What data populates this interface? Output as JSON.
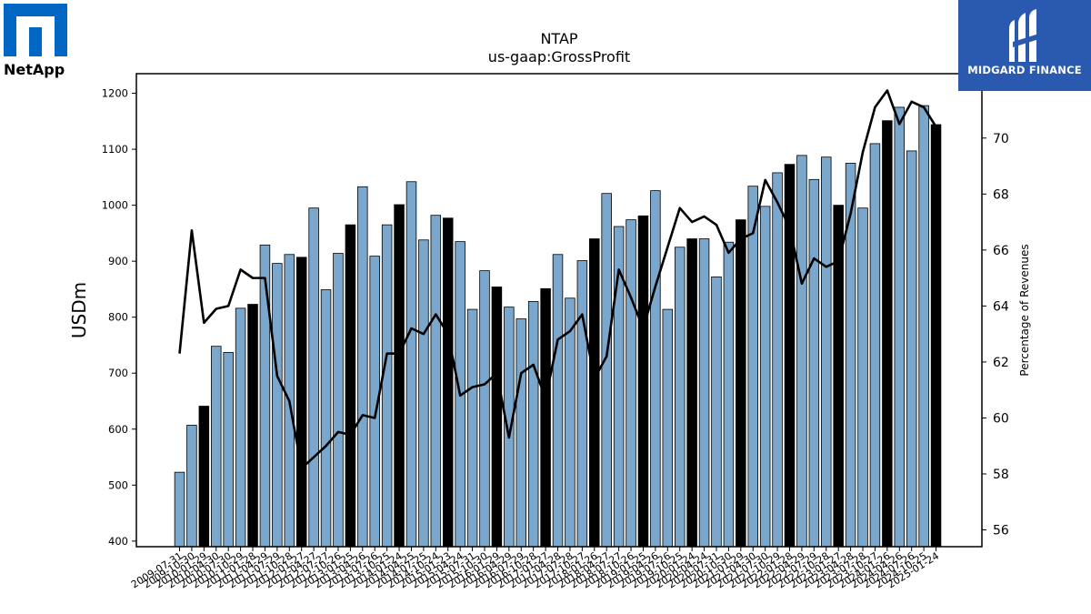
{
  "logos": {
    "left": {
      "name": "NetApp"
    },
    "right": {
      "name": "MIDGARD FINANCE"
    }
  },
  "colors": {
    "bar": "#7ba7cc",
    "bar_highlight": "#000000",
    "line": "#000000"
  },
  "chart_data": {
    "type": "bar",
    "title": "NTAP",
    "subtitle": "us-gaap:GrossProfit",
    "ylabel": "USDm",
    "y2label": "Percentage of Revenues",
    "ylim": [
      390,
      1235
    ],
    "y2lim": [
      55.4,
      72.3
    ],
    "yticks": [
      400,
      500,
      600,
      700,
      800,
      900,
      1000,
      1100,
      1200
    ],
    "y2ticks": [
      56,
      58,
      60,
      62,
      64,
      66,
      68,
      70
    ],
    "categories": [
      "2009-07-31",
      "2009-10-30",
      "2010-01-29",
      "2010-04-30",
      "2010-07-30",
      "2010-10-29",
      "2011-01-28",
      "2011-04-29",
      "2011-07-29",
      "2011-10-28",
      "2012-01-27",
      "2012-04-27",
      "2012-07-27",
      "2012-10-26",
      "2013-01-25",
      "2013-04-26",
      "2013-07-26",
      "2013-10-25",
      "2014-01-24",
      "2014-04-25",
      "2014-07-25",
      "2014-10-24",
      "2015-01-23",
      "2015-04-24",
      "2015-07-31",
      "2015-10-30",
      "2016-01-29",
      "2016-04-29",
      "2016-07-29",
      "2016-10-28",
      "2017-01-27",
      "2017-04-28",
      "2017-07-28",
      "2017-10-27",
      "2018-01-26",
      "2018-04-27",
      "2018-07-27",
      "2018-10-26",
      "2019-01-25",
      "2019-04-26",
      "2019-07-26",
      "2019-10-25",
      "2020-01-24",
      "2020-04-24",
      "2020-07-31",
      "2020-10-30",
      "2021-01-29",
      "2021-04-30",
      "2021-07-30",
      "2021-10-29",
      "2022-01-28",
      "2022-04-29",
      "2022-07-29",
      "2022-10-28",
      "2023-01-27",
      "2023-04-28",
      "2023-07-28",
      "2023-10-27",
      "2024-01-26",
      "2024-04-26",
      "2024-07-26",
      "2024-10-25",
      "2025-01-24"
    ],
    "tick_labels": [
      "2009-07-31",
      "2009-10-30",
      "2010-01-29",
      "2010-04-30",
      "2010-07-30",
      "2010-10-29",
      "2011-01-28",
      "2011-04-29",
      "2011-07-29",
      "2011-10-28",
      "2012-01-27",
      "2012-04-27",
      "2012-07-27",
      "2012-10-26",
      "2013-01-25",
      "2013-04-26",
      "2013-07-26",
      "2013-10-25",
      "2014-01-24",
      "2014-04-25",
      "2014-07-25",
      "2014-10-24",
      "2015-01-23",
      "2015-04-24",
      "2015-07-31",
      "2015-10-30",
      "2016-01-29",
      "2016-04-29",
      "2016-07-29",
      "2016-10-28",
      "2017-01-27",
      "2017-04-28",
      "2017-07-28",
      "2017-10-27",
      "2018-01-26",
      "2018-04-27",
      "2018-07-27",
      "2018-10-26",
      "2019-01-25",
      "2019-04-26",
      "2019-07-26",
      "2019-10-25",
      "2020-01-24",
      "2020-04-24",
      "2020-07-31",
      "2020-10-30",
      "2021-01-29",
      "2021-04-30",
      "2021-07-30",
      "2021-10-29",
      "2022-01-28",
      "2022-04-29",
      "2022-07-29",
      "2022-10-28",
      "2023-01-27",
      "2023-04-28",
      "2023-07-28",
      "2023-10-27",
      "2024-01-26",
      "2024-04-26",
      "2024-07-26",
      "2024-10-25",
      "2025-01-24"
    ],
    "series": [
      {
        "values": [
          523,
          607,
          641,
          748,
          737,
          816,
          823,
          929,
          896,
          912,
          907,
          995,
          849,
          914,
          965,
          1033,
          909,
          965,
          1001,
          1042,
          938,
          982,
          977,
          935,
          814,
          883,
          854,
          818,
          797,
          828,
          851,
          912,
          834,
          901,
          940,
          1021,
          962,
          974,
          981,
          1026,
          814,
          925,
          940,
          940,
          872,
          934,
          974,
          1034,
          998,
          1058,
          1073,
          1089,
          1046,
          1086,
          1000,
          1075,
          995,
          1110,
          1151,
          1175,
          1097,
          1178,
          1144
        ]
      },
      {
        "values": [
          62.3,
          66.7,
          63.4,
          63.9,
          64.0,
          65.3,
          65.0,
          65.0,
          61.5,
          60.6,
          58.2,
          58.6,
          59.0,
          59.5,
          59.4,
          60.1,
          60.0,
          62.3,
          62.3,
          63.2,
          63.0,
          63.7,
          63.0,
          60.8,
          61.1,
          61.2,
          61.6,
          59.3,
          61.6,
          61.9,
          60.7,
          62.8,
          63.1,
          63.7,
          61.4,
          62.2,
          65.3,
          64.3,
          63.2,
          64.7,
          66.1,
          67.5,
          67.0,
          67.2,
          66.9,
          65.9,
          66.4,
          66.6,
          68.5,
          67.7,
          66.8,
          64.8,
          65.7,
          65.4,
          65.6,
          67.3,
          69.5,
          71.1,
          71.7,
          70.5,
          71.3,
          71.1,
          70.4
        ]
      }
    ],
    "highlight_indices": [
      2,
      6,
      10,
      14,
      18,
      22,
      26,
      30,
      34,
      38,
      42,
      46,
      50,
      54,
      58,
      62
    ]
  }
}
